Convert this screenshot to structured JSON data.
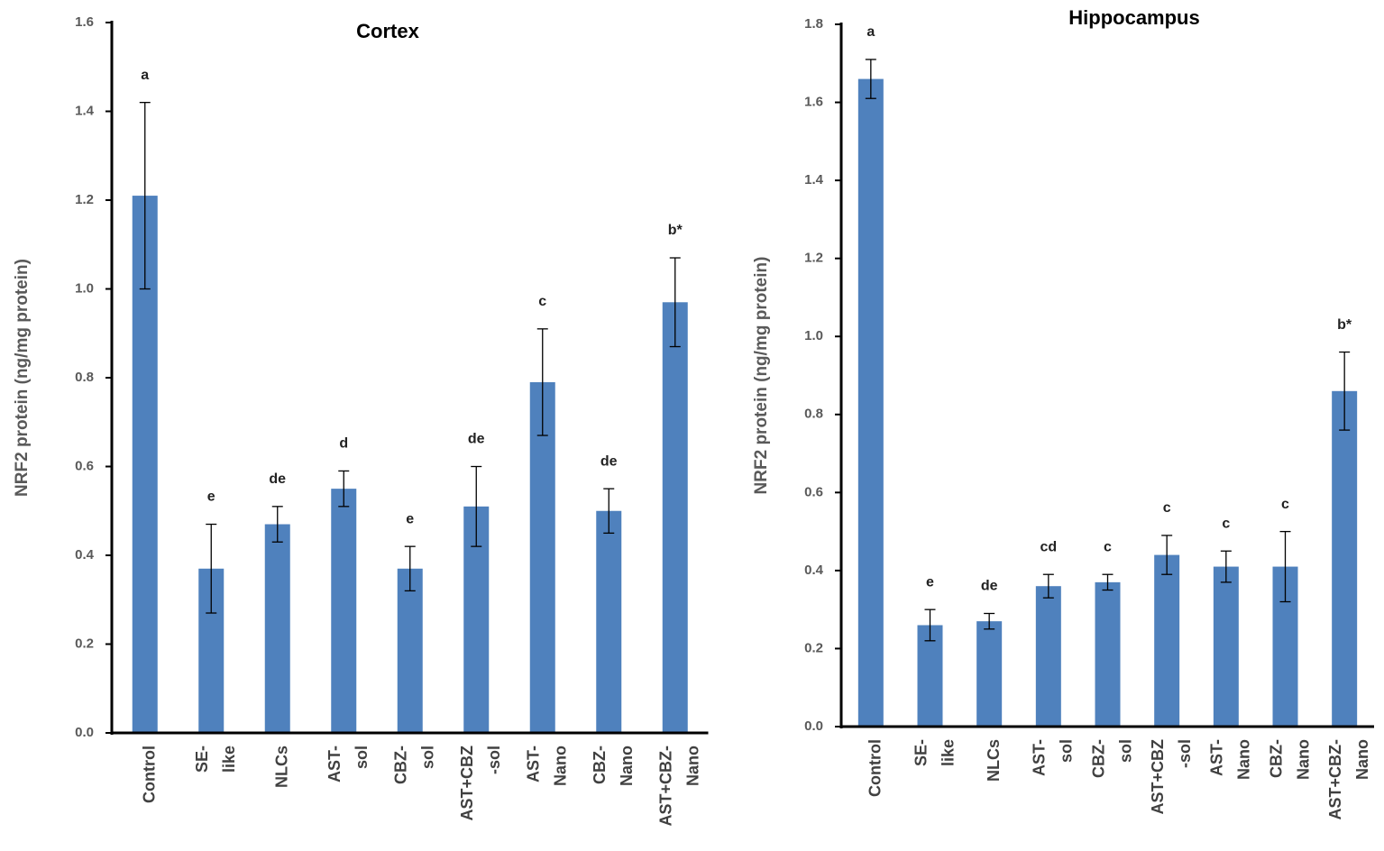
{
  "chart_data": [
    {
      "type": "bar",
      "title": "Cortex",
      "y_label": "NRF2 protein (ng/mg protein)",
      "categories": [
        [
          "Control"
        ],
        [
          "SE-",
          "like"
        ],
        [
          "NLCs"
        ],
        [
          "AST-",
          "sol"
        ],
        [
          "CBZ-",
          "sol"
        ],
        [
          "AST+CBZ",
          "-sol"
        ],
        [
          "AST-",
          "Nano"
        ],
        [
          "CBZ-",
          "Nano"
        ],
        [
          "AST+CBZ-",
          "Nano"
        ]
      ],
      "values": [
        1.21,
        0.37,
        0.47,
        0.55,
        0.37,
        0.51,
        0.79,
        0.5,
        0.97
      ],
      "errors": [
        0.21,
        0.1,
        0.04,
        0.04,
        0.05,
        0.09,
        0.12,
        0.05,
        0.1
      ],
      "letters": [
        "a",
        "e",
        "de",
        "d",
        "e",
        "de",
        "c",
        "de",
        "b*"
      ],
      "color": "#4f81bd",
      "ylim": [
        0,
        1.6
      ],
      "yticks": [
        {
          "value": 0,
          "label": "0.0"
        },
        0.2,
        0.4,
        0.6,
        0.8,
        {
          "value": 1,
          "label": "1.0"
        },
        1.2,
        1.4,
        1.6
      ]
    },
    {
      "type": "bar",
      "title": "Hippocampus",
      "y_label": "NRF2 protein  (ng/mg protein)",
      "categories": [
        [
          "Control"
        ],
        [
          "SE-",
          "like"
        ],
        [
          "NLCs"
        ],
        [
          "AST-",
          "sol"
        ],
        [
          "CBZ-",
          "sol"
        ],
        [
          "AST+CBZ",
          "-sol"
        ],
        [
          "AST-",
          "Nano"
        ],
        [
          "CBZ-",
          "Nano"
        ],
        [
          "AST+CBZ-",
          "Nano"
        ]
      ],
      "values": [
        1.66,
        0.26,
        0.27,
        0.36,
        0.37,
        0.44,
        0.41,
        0.41,
        0.86
      ],
      "errors": [
        0.05,
        0.04,
        0.02,
        0.03,
        0.02,
        0.05,
        0.04,
        0.09,
        0.1
      ],
      "letters": [
        "a",
        "e",
        "de",
        "cd",
        "c",
        "c",
        "c",
        "c",
        "b*"
      ],
      "color": "#4f81bd",
      "ylim": [
        0,
        1.8
      ],
      "yticks": [
        {
          "value": 0,
          "label": "0.0"
        },
        0.2,
        0.4,
        0.6,
        0.8,
        {
          "value": 1,
          "label": "1.0"
        },
        1.2,
        1.4,
        1.6,
        1.8
      ]
    }
  ]
}
